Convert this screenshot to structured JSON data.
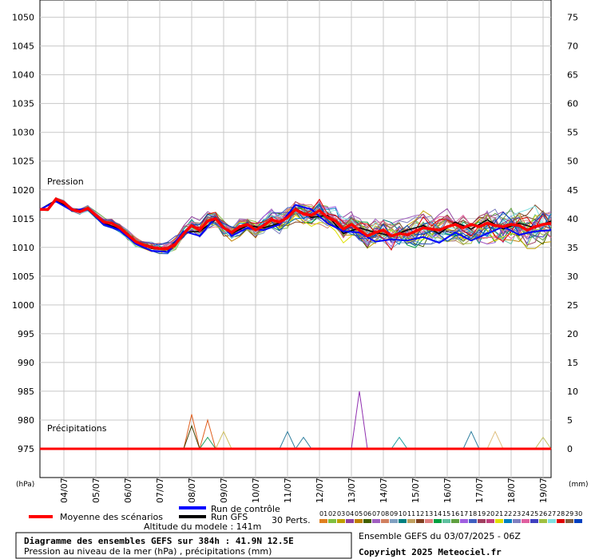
{
  "chart_data": {
    "type": "line",
    "ylabel_left": "(hPa)",
    "ylabel_right": "(mm)",
    "pressure_axis": {
      "min": 970,
      "max": 1053,
      "ticks": [
        975,
        980,
        985,
        990,
        995,
        1000,
        1005,
        1010,
        1015,
        1020,
        1025,
        1030,
        1035,
        1040,
        1045,
        1050
      ]
    },
    "precip_axis": {
      "min": -5,
      "max": 78,
      "ticks": [
        0,
        5,
        10,
        15,
        20,
        25,
        30,
        35,
        40,
        45,
        50,
        55,
        60,
        65,
        70,
        75
      ]
    },
    "x_labels": [
      "04/07",
      "05/07",
      "06/07",
      "07/07",
      "08/07",
      "09/07",
      "10/07",
      "11/07",
      "12/07",
      "13/07",
      "14/07",
      "15/07",
      "16/07",
      "17/07",
      "18/07",
      "19/07"
    ],
    "x_range_hours": [
      0,
      384
    ],
    "label_pression": "Pression",
    "label_precip": "Précipitations",
    "mean_pressure": [
      [
        0,
        1016.6
      ],
      [
        6,
        1016.6
      ],
      [
        12,
        1018.4
      ],
      [
        18,
        1017.8
      ],
      [
        24,
        1016.6
      ],
      [
        30,
        1016.2
      ],
      [
        36,
        1016.8
      ],
      [
        42,
        1015.6
      ],
      [
        48,
        1014.4
      ],
      [
        54,
        1014.2
      ],
      [
        60,
        1013.4
      ],
      [
        66,
        1012.2
      ],
      [
        72,
        1011.0
      ],
      [
        78,
        1010.4
      ],
      [
        84,
        1010.0
      ],
      [
        90,
        1009.8
      ],
      [
        96,
        1009.8
      ],
      [
        102,
        1010.6
      ],
      [
        108,
        1012.4
      ],
      [
        114,
        1013.8
      ],
      [
        120,
        1013.0
      ],
      [
        126,
        1014.6
      ],
      [
        132,
        1015.0
      ],
      [
        138,
        1013.4
      ],
      [
        144,
        1012.6
      ],
      [
        150,
        1013.6
      ],
      [
        156,
        1014.0
      ],
      [
        162,
        1013.0
      ],
      [
        168,
        1013.8
      ],
      [
        174,
        1014.8
      ],
      [
        180,
        1014.4
      ],
      [
        186,
        1015.2
      ],
      [
        192,
        1016.6
      ],
      [
        198,
        1015.8
      ],
      [
        204,
        1015.6
      ],
      [
        210,
        1016.4
      ],
      [
        216,
        1015.2
      ],
      [
        222,
        1014.6
      ],
      [
        228,
        1013.2
      ],
      [
        234,
        1014.0
      ],
      [
        240,
        1013.0
      ],
      [
        246,
        1012.0
      ],
      [
        252,
        1012.6
      ],
      [
        258,
        1013.0
      ],
      [
        264,
        1012.0
      ],
      [
        270,
        1012.4
      ],
      [
        276,
        1012.2
      ],
      [
        282,
        1012.8
      ],
      [
        288,
        1013.4
      ],
      [
        294,
        1013.2
      ],
      [
        300,
        1013.0
      ],
      [
        306,
        1013.6
      ],
      [
        312,
        1014.0
      ],
      [
        318,
        1013.4
      ],
      [
        324,
        1014.0
      ],
      [
        330,
        1013.6
      ],
      [
        336,
        1014.2
      ],
      [
        342,
        1013.8
      ],
      [
        348,
        1013.6
      ],
      [
        354,
        1014.0
      ],
      [
        360,
        1013.8
      ],
      [
        366,
        1013.0
      ],
      [
        372,
        1013.6
      ],
      [
        378,
        1014.0
      ],
      [
        384,
        1014.2
      ]
    ],
    "control_pressure": [
      [
        0,
        1016.6
      ],
      [
        12,
        1018.0
      ],
      [
        24,
        1016.4
      ],
      [
        36,
        1016.8
      ],
      [
        48,
        1014.0
      ],
      [
        60,
        1013.0
      ],
      [
        72,
        1010.6
      ],
      [
        84,
        1009.4
      ],
      [
        96,
        1009.2
      ],
      [
        108,
        1012.8
      ],
      [
        120,
        1012.0
      ],
      [
        132,
        1015.2
      ],
      [
        144,
        1012.0
      ],
      [
        156,
        1013.4
      ],
      [
        168,
        1013.0
      ],
      [
        180,
        1014.0
      ],
      [
        192,
        1017.4
      ],
      [
        204,
        1016.6
      ],
      [
        216,
        1014.2
      ],
      [
        228,
        1012.8
      ],
      [
        240,
        1012.6
      ],
      [
        252,
        1011.0
      ],
      [
        264,
        1011.4
      ],
      [
        276,
        1011.2
      ],
      [
        288,
        1011.8
      ],
      [
        300,
        1010.8
      ],
      [
        312,
        1012.6
      ],
      [
        324,
        1011.2
      ],
      [
        336,
        1012.4
      ],
      [
        348,
        1013.6
      ],
      [
        360,
        1012.2
      ],
      [
        372,
        1012.8
      ],
      [
        384,
        1013.0
      ]
    ],
    "gfs_pressure": [
      [
        0,
        1016.6
      ],
      [
        12,
        1018.2
      ],
      [
        24,
        1016.6
      ],
      [
        36,
        1016.6
      ],
      [
        48,
        1014.2
      ],
      [
        60,
        1013.2
      ],
      [
        72,
        1010.8
      ],
      [
        84,
        1009.8
      ],
      [
        96,
        1009.6
      ],
      [
        108,
        1012.6
      ],
      [
        120,
        1012.8
      ],
      [
        132,
        1014.8
      ],
      [
        144,
        1012.4
      ],
      [
        156,
        1013.8
      ],
      [
        168,
        1013.4
      ],
      [
        180,
        1014.2
      ],
      [
        192,
        1016.8
      ],
      [
        204,
        1015.2
      ],
      [
        216,
        1015.6
      ],
      [
        228,
        1012.4
      ],
      [
        240,
        1013.4
      ],
      [
        252,
        1012.6
      ],
      [
        264,
        1012.0
      ],
      [
        276,
        1013.0
      ],
      [
        288,
        1013.8
      ],
      [
        300,
        1012.4
      ],
      [
        312,
        1014.4
      ],
      [
        324,
        1013.2
      ],
      [
        336,
        1014.8
      ],
      [
        348,
        1013.2
      ],
      [
        360,
        1014.2
      ],
      [
        372,
        1013.4
      ],
      [
        384,
        1014.6
      ]
    ],
    "mean_precip": [
      [
        0,
        0
      ],
      [
        384,
        0
      ]
    ],
    "perturbation_precip_peaks": [
      {
        "hour": 114,
        "value": 6,
        "color": "#e06020"
      },
      {
        "hour": 114,
        "value": 4,
        "color": "#404000"
      },
      {
        "hour": 126,
        "value": 5,
        "color": "#e06020"
      },
      {
        "hour": 126,
        "value": 2,
        "color": "#20a060"
      },
      {
        "hour": 138,
        "value": 3,
        "color": "#d0c060"
      },
      {
        "hour": 186,
        "value": 3,
        "color": "#3080a0"
      },
      {
        "hour": 198,
        "value": 2,
        "color": "#3080a0"
      },
      {
        "hour": 240,
        "value": 10,
        "color": "#9030b0"
      },
      {
        "hour": 270,
        "value": 2,
        "color": "#20a0a0"
      },
      {
        "hour": 324,
        "value": 3,
        "color": "#3080a0"
      },
      {
        "hour": 342,
        "value": 3,
        "color": "#e0c080"
      },
      {
        "hour": 378,
        "value": 2,
        "color": "#c0c060"
      }
    ],
    "legend": {
      "mean": "Moyenne des scénarios",
      "control": "Run de contrôle",
      "gfs": "Run GFS",
      "perts": "30 Perts.",
      "pert_numbers": [
        "01",
        "02",
        "03",
        "04",
        "05",
        "06",
        "07",
        "08",
        "09",
        "10",
        "11",
        "12",
        "13",
        "14",
        "15",
        "16",
        "17",
        "18",
        "19",
        "20",
        "21",
        "22",
        "23",
        "24",
        "25",
        "26",
        "27",
        "28",
        "29",
        "30"
      ],
      "pert_colors": [
        "#e08020",
        "#80c040",
        "#c0a000",
        "#9040a0",
        "#c08000",
        "#406000",
        "#a060c0",
        "#d08060",
        "#80a0c0",
        "#008080",
        "#c0a060",
        "#804020",
        "#e08080",
        "#00a040",
        "#60c0a0",
        "#60a040",
        "#a060e0",
        "#4060c0",
        "#a04060",
        "#c04080",
        "#e0e000",
        "#0080c0",
        "#8080c0",
        "#e060a0",
        "#4040c0",
        "#a0c040",
        "#80e0e0",
        "#e00000",
        "#806040",
        "#0040c0"
      ],
      "mean_color": "#ff0000",
      "control_color": "#0000ff",
      "gfs_color": "#000000"
    },
    "altitude_text": "Altitude du modele : 141m",
    "title": "Diagramme des ensembles GEFS sur 384h : 41.9N 12.5E",
    "subtitle": "Pression au niveau de la mer (hPa) , précipitations (mm)",
    "run_text": "Ensemble GEFS du 03/07/2025 - 06Z",
    "copyright": "Copyright 2025 Meteociel.fr"
  }
}
